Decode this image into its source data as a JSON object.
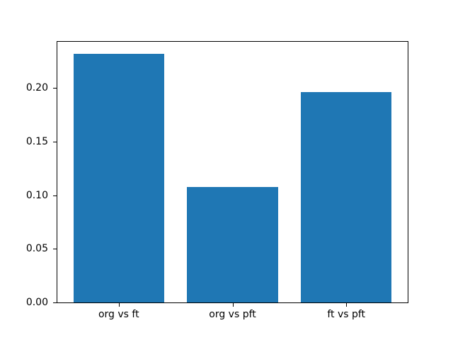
{
  "chart_data": {
    "type": "bar",
    "title": "",
    "xlabel": "",
    "ylabel": "",
    "categories": [
      "org vs ft",
      "org vs pft",
      "ft vs pft"
    ],
    "values": [
      0.232,
      0.108,
      0.196
    ],
    "bar_color": "#1f77b4",
    "y_ticks": [
      0.0,
      0.05,
      0.1,
      0.15,
      0.2
    ],
    "y_tick_labels": [
      "0.00",
      "0.05",
      "0.10",
      "0.15",
      "0.20"
    ],
    "ylim": [
      0,
      0.2432
    ],
    "xlim": [
      -0.54,
      2.54
    ],
    "bar_width_units": 0.8,
    "grid": false,
    "legend": null,
    "spine_color": "#000000",
    "text_color": "#000000"
  }
}
